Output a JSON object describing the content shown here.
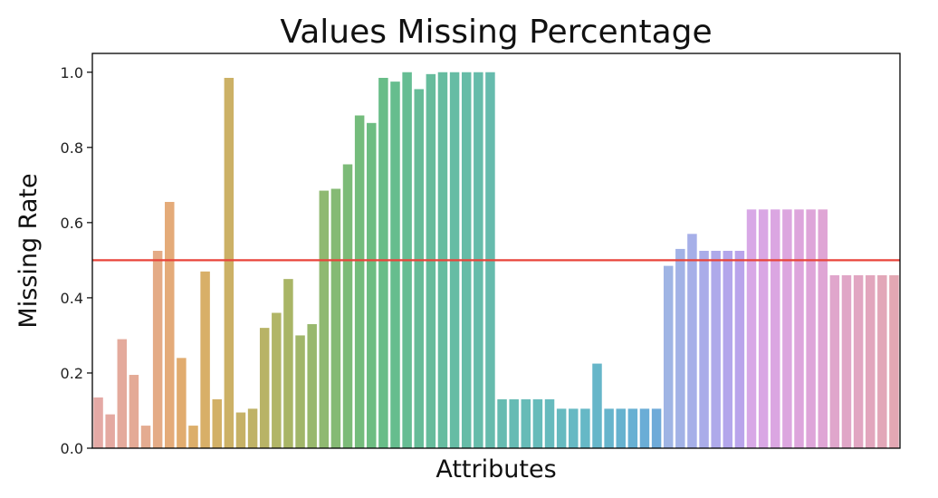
{
  "chart_data": {
    "type": "bar",
    "title": "Values Missing Percentage",
    "xlabel": "Attributes",
    "ylabel": "Missing Rate",
    "ylim": [
      0,
      1.05
    ],
    "yticks": [
      0.0,
      0.2,
      0.4,
      0.6,
      0.8,
      1.0
    ],
    "ytick_labels": [
      "0.0",
      "0.2",
      "0.4",
      "0.6",
      "0.8",
      "1.0"
    ],
    "xticks_shown": false,
    "grid": false,
    "threshold": {
      "value": 0.5,
      "color": "#e8443a"
    },
    "values": [
      0.135,
      0.09,
      0.29,
      0.195,
      0.06,
      0.525,
      0.655,
      0.24,
      0.06,
      0.47,
      0.13,
      0.985,
      0.095,
      0.105,
      0.32,
      0.36,
      0.45,
      0.3,
      0.33,
      0.685,
      0.69,
      0.755,
      0.885,
      0.865,
      0.985,
      0.975,
      1.0,
      0.955,
      0.995,
      1.0,
      1.0,
      1.0,
      1.0,
      1.0,
      0.13,
      0.13,
      0.13,
      0.13,
      0.13,
      0.105,
      0.105,
      0.105,
      0.225,
      0.105,
      0.105,
      0.105,
      0.105,
      0.105,
      0.485,
      0.53,
      0.57,
      0.525,
      0.525,
      0.525,
      0.525,
      0.635,
      0.635,
      0.635,
      0.635,
      0.635,
      0.635,
      0.635,
      0.46,
      0.46,
      0.46,
      0.46,
      0.46,
      0.46
    ],
    "colors": [
      "#e4a9a5",
      "#e4a9a1",
      "#e4aa9c",
      "#e4aa96",
      "#e4ab90",
      "#e4ab86",
      "#e4ab79",
      "#e1ac6f",
      "#dcae6a",
      "#d8af68",
      "#d2b066",
      "#ccb166",
      "#c6b166",
      "#bfb266",
      "#b8b366",
      "#b1b566",
      "#a9b566",
      "#a1b66a",
      "#98b86d",
      "#8fb971",
      "#85ba74",
      "#7cbb78",
      "#74bc7c",
      "#6dbd82",
      "#68bd88",
      "#66bd8e",
      "#66bd93",
      "#66bc98",
      "#66bc9c",
      "#66bca0",
      "#66bca4",
      "#66bca7",
      "#66bcaa",
      "#66bbad",
      "#66bbb1",
      "#66bbb4",
      "#66bbb7",
      "#66bbba",
      "#66babd",
      "#66bac0",
      "#66b9c3",
      "#66b8c6",
      "#66b6c9",
      "#66b4cc",
      "#66b2cf",
      "#67b0d3",
      "#6aadd6",
      "#6eaad8",
      "#9fb4e4",
      "#a2b2e6",
      "#a6afe8",
      "#aaace9",
      "#aea9ea",
      "#b3a6eb",
      "#b9a4eb",
      "#d8a8e6",
      "#d9a7e4",
      "#dba6e2",
      "#dca6df",
      "#dda5dc",
      "#dea5d9",
      "#dfa5d5",
      "#e0a6cc",
      "#e0a6c7",
      "#e1a6c2",
      "#e2a6bd",
      "#e2a7b8",
      "#e3a7b3"
    ]
  }
}
